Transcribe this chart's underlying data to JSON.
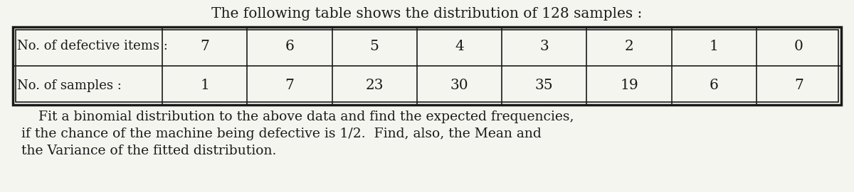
{
  "title": "The following table shows the distribution of 128 samples :",
  "title_fontsize": 14.5,
  "row1_label": "No. of defective items :",
  "row2_label": "No. of samples :",
  "col_values_row1": [
    "7",
    "6",
    "5",
    "4",
    "3",
    "2",
    "1",
    "0"
  ],
  "col_values_row2": [
    "1",
    "7",
    "23",
    "30",
    "35",
    "19",
    "6",
    "7"
  ],
  "paragraph_line1": "    Fit a binomial distribution to the above data and find the expected frequencies,",
  "paragraph_line2": "if the chance of the machine being defective is 1/2.  Find, also, the Mean and",
  "paragraph_line3": "the Variance of the fitted distribution.",
  "para_fontsize": 13.5,
  "bg_color": "#f5f5f0",
  "text_color": "#1a1a1a",
  "table_lw_outer": 2.5,
  "table_lw_inner": 1.2,
  "table_lw_cell": 1.2,
  "label_fontsize": 13.0,
  "cell_fontsize": 14.5
}
